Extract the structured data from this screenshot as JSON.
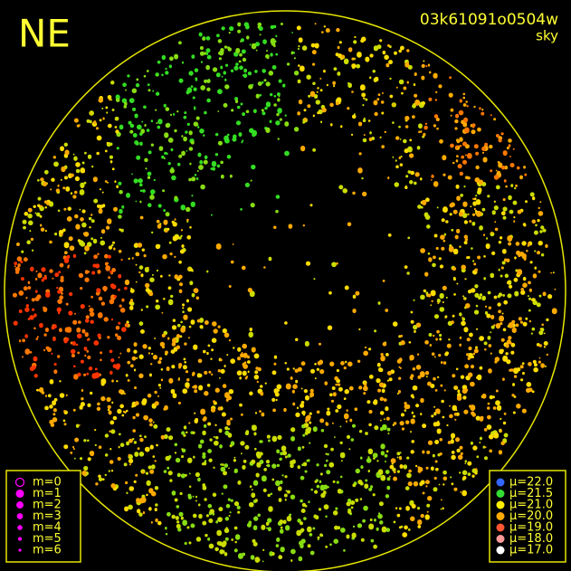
{
  "header": {
    "direction": "NE",
    "frame_id": "03k61091o0504w",
    "filter": "sky"
  },
  "magnitude_legend": {
    "items": [
      "m=0",
      "m=1",
      "m=2",
      "m=3",
      "m=4",
      "m=5",
      "m=6"
    ]
  },
  "brightness_legend": {
    "items": [
      "μ=22.0",
      "μ=21.5",
      "μ=21.0",
      "μ=20.0",
      "μ=19.0",
      "μ=18.0",
      "μ=17.0"
    ]
  }
}
